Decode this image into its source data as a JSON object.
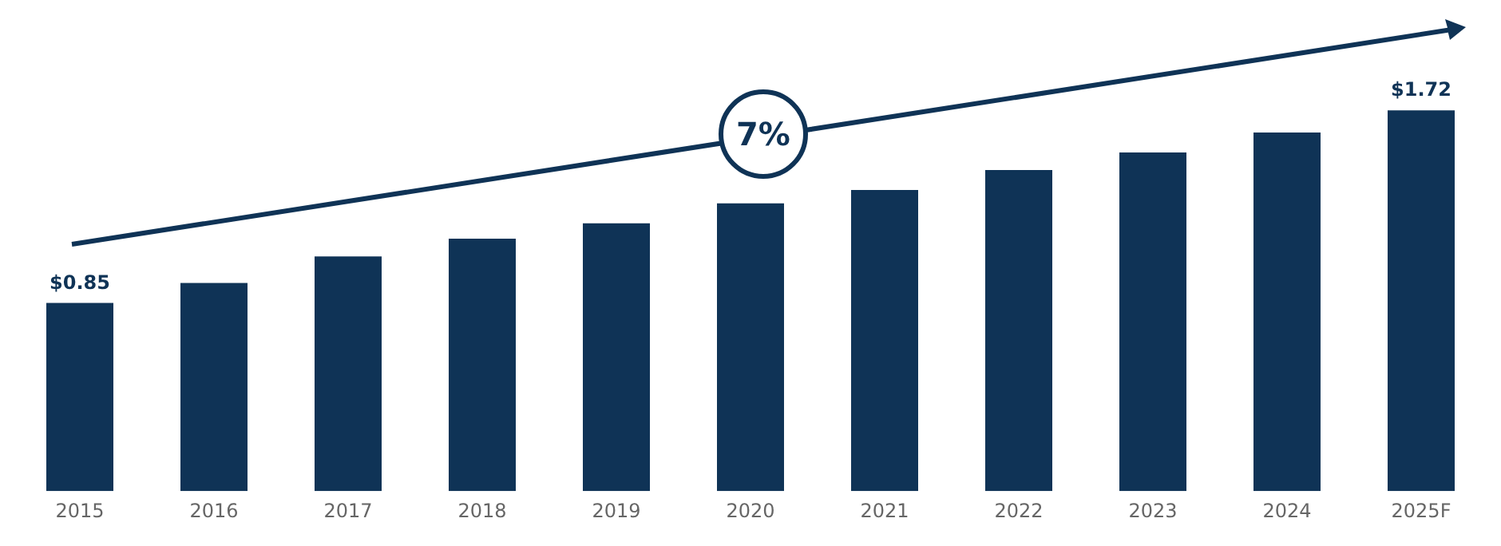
{
  "chart_data": {
    "type": "bar",
    "categories": [
      "2015",
      "2016",
      "2017",
      "2018",
      "2019",
      "2020",
      "2021",
      "2022",
      "2023",
      "2024",
      "2025F"
    ],
    "values": [
      0.85,
      0.94,
      1.06,
      1.14,
      1.21,
      1.3,
      1.36,
      1.45,
      1.53,
      1.62,
      1.72
    ],
    "value_labels": [
      "$0.85",
      null,
      null,
      null,
      null,
      null,
      null,
      null,
      null,
      null,
      "$1.72"
    ],
    "color": "#0f3356",
    "tick_labels": "x",
    "grid": false,
    "legend": false,
    "annotations": [
      "7%"
    ]
  }
}
